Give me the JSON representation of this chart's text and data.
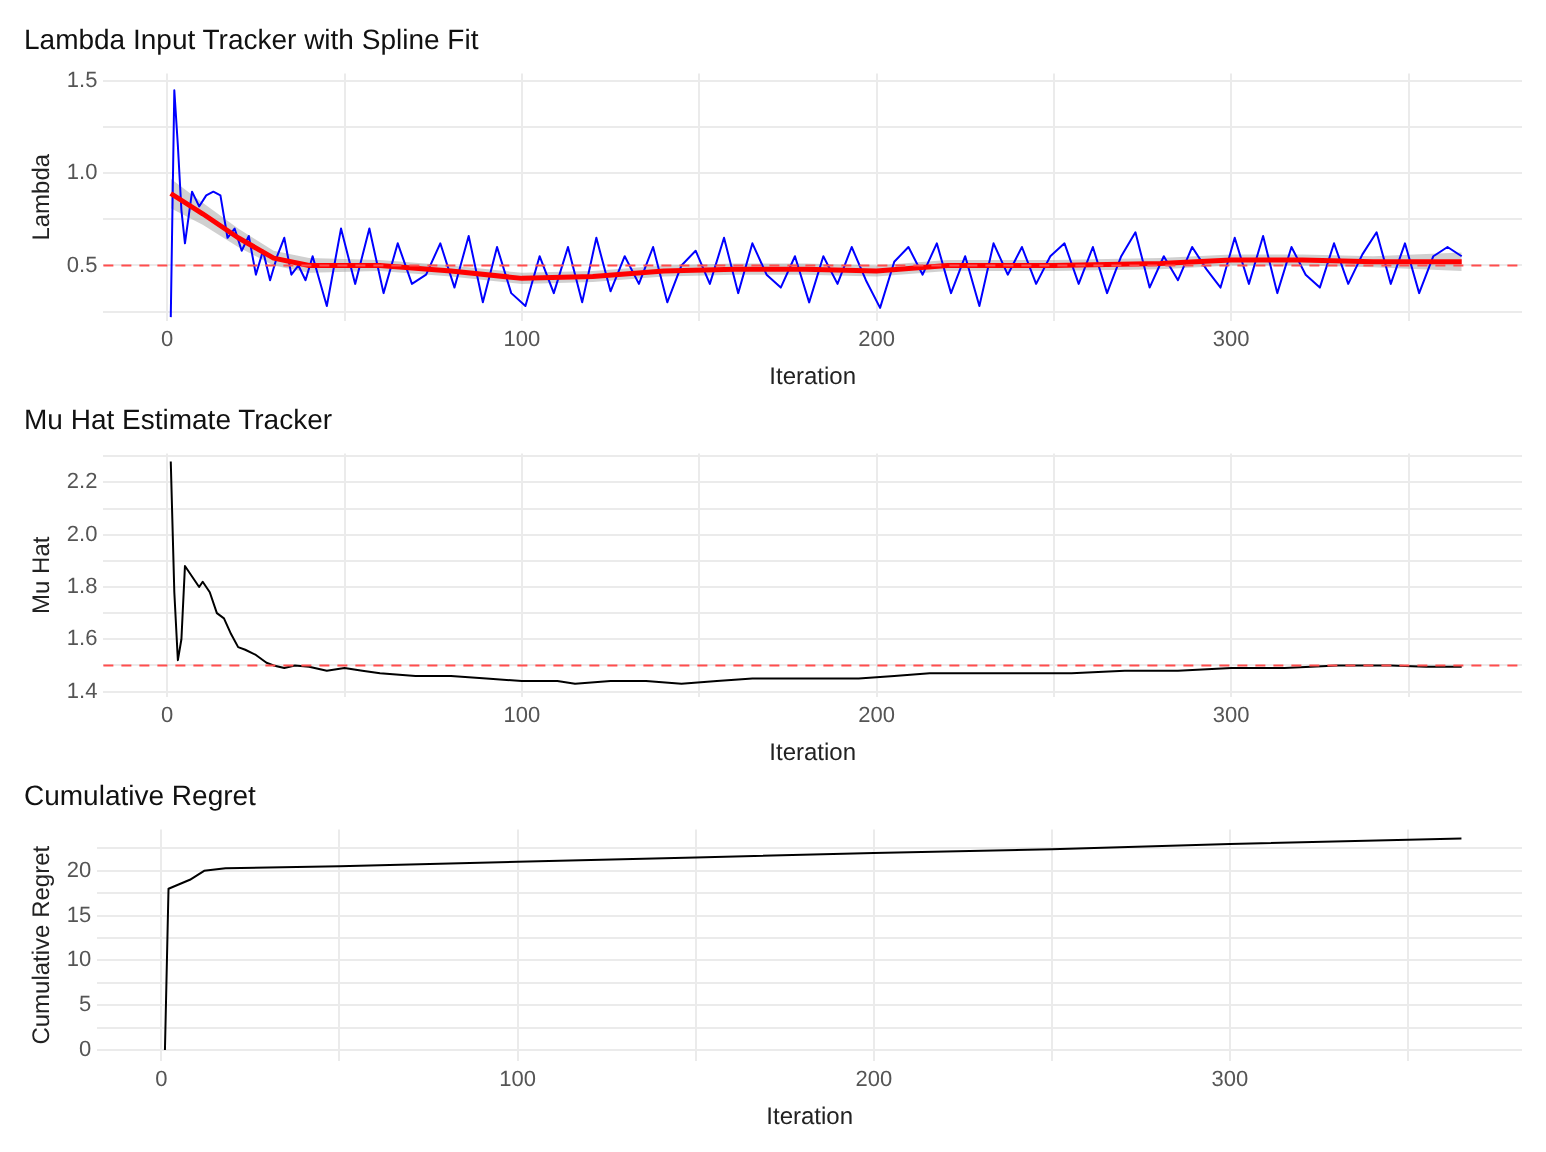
{
  "chart_data": [
    {
      "type": "line",
      "title": "Lambda Input Tracker with Spline Fit",
      "xlabel": "Iteration",
      "ylabel": "Lambda",
      "marker": "none",
      "grid": true,
      "xlim": [
        -18,
        382
      ],
      "xticks": [
        0,
        {
          "value": 50,
          "label": null
        },
        100,
        {
          "value": 150,
          "label": null
        },
        200,
        {
          "value": 250,
          "label": null
        },
        300,
        {
          "value": 350,
          "label": null
        }
      ],
      "ylim": [
        0.2,
        1.54
      ],
      "yticks": [
        {
          "value": 0.25,
          "label": null
        },
        0.5,
        {
          "value": 0.75,
          "label": null
        },
        {
          "value": 1,
          "label": "1.0"
        },
        {
          "value": 1.25,
          "label": null
        },
        1.5
      ],
      "ref_lines": [
        {
          "axis": "y",
          "value": 0.5,
          "color": "#ff4d4d",
          "line_style": "dashed"
        }
      ],
      "series": [
        {
          "color": "#0000ff",
          "x": [
            1,
            2,
            3,
            4,
            5,
            7,
            9,
            11,
            13,
            15,
            17,
            19,
            21,
            23,
            25,
            27,
            29,
            31,
            33,
            35,
            37,
            39,
            41,
            45,
            49,
            53,
            57,
            61,
            65,
            69,
            73,
            77,
            81,
            85,
            89,
            93,
            97,
            101,
            105,
            109,
            113,
            117,
            121,
            125,
            129,
            133,
            137,
            141,
            145,
            149,
            153,
            157,
            161,
            165,
            169,
            173,
            177,
            181,
            185,
            189,
            193,
            197,
            201,
            205,
            209,
            213,
            217,
            221,
            225,
            229,
            233,
            237,
            241,
            245,
            249,
            253,
            257,
            261,
            265,
            269,
            273,
            277,
            281,
            285,
            289,
            293,
            297,
            301,
            305,
            309,
            313,
            317,
            321,
            325,
            329,
            333,
            337,
            341,
            345,
            349,
            353,
            357,
            361,
            365
          ],
          "values": [
            0.22,
            1.45,
            1.15,
            0.8,
            0.62,
            0.9,
            0.82,
            0.88,
            0.9,
            0.88,
            0.65,
            0.7,
            0.58,
            0.66,
            0.45,
            0.58,
            0.42,
            0.55,
            0.65,
            0.45,
            0.5,
            0.42,
            0.55,
            0.28,
            0.7,
            0.4,
            0.7,
            0.35,
            0.62,
            0.4,
            0.45,
            0.62,
            0.38,
            0.66,
            0.3,
            0.6,
            0.35,
            0.28,
            0.55,
            0.35,
            0.6,
            0.3,
            0.65,
            0.36,
            0.55,
            0.4,
            0.6,
            0.3,
            0.5,
            0.58,
            0.4,
            0.65,
            0.35,
            0.62,
            0.45,
            0.38,
            0.55,
            0.3,
            0.55,
            0.4,
            0.6,
            0.42,
            0.27,
            0.52,
            0.6,
            0.45,
            0.62,
            0.35,
            0.55,
            0.28,
            0.62,
            0.45,
            0.6,
            0.4,
            0.55,
            0.62,
            0.4,
            0.6,
            0.35,
            0.55,
            0.68,
            0.38,
            0.55,
            0.42,
            0.6,
            0.48,
            0.38,
            0.65,
            0.4,
            0.66,
            0.35,
            0.6,
            0.45,
            0.38,
            0.62,
            0.4,
            0.56,
            0.68,
            0.4,
            0.62,
            0.35,
            0.55,
            0.6,
            0.55
          ]
        },
        {
          "color": "#ff0000",
          "x": [
            1,
            10,
            20,
            30,
            40,
            60,
            80,
            100,
            120,
            140,
            160,
            180,
            200,
            220,
            250,
            280,
            300,
            320,
            340,
            365
          ],
          "values": [
            0.89,
            0.78,
            0.65,
            0.54,
            0.5,
            0.5,
            0.47,
            0.43,
            0.44,
            0.47,
            0.48,
            0.48,
            0.47,
            0.5,
            0.5,
            0.51,
            0.53,
            0.53,
            0.52,
            0.52
          ],
          "lower": [
            0.81,
            0.72,
            0.6,
            0.5,
            0.46,
            0.47,
            0.44,
            0.4,
            0.41,
            0.44,
            0.45,
            0.45,
            0.44,
            0.47,
            0.47,
            0.48,
            0.5,
            0.5,
            0.49,
            0.47
          ],
          "upper": [
            0.97,
            0.84,
            0.7,
            0.58,
            0.54,
            0.53,
            0.5,
            0.46,
            0.47,
            0.5,
            0.51,
            0.51,
            0.5,
            0.53,
            0.53,
            0.54,
            0.56,
            0.56,
            0.55,
            0.57
          ]
        }
      ]
    },
    {
      "type": "line",
      "title": "Mu Hat Estimate Tracker",
      "xlabel": "Iteration",
      "ylabel": "Mu Hat",
      "marker": "none",
      "grid": true,
      "xlim": [
        -18,
        382
      ],
      "xticks": [
        0,
        {
          "value": 50,
          "label": null
        },
        100,
        {
          "value": 150,
          "label": null
        },
        200,
        {
          "value": 250,
          "label": null
        },
        300,
        {
          "value": 350,
          "label": null
        }
      ],
      "ylim": [
        1.38,
        2.31
      ],
      "yticks": [
        1.4,
        {
          "value": 1.5,
          "label": null
        },
        1.6,
        {
          "value": 1.7,
          "label": null
        },
        1.8,
        {
          "value": 1.9,
          "label": null
        },
        {
          "value": 2,
          "label": "2.0"
        },
        {
          "value": 2.1,
          "label": null
        },
        2.2,
        {
          "value": 2.3,
          "label": null
        }
      ],
      "ref_lines": [
        {
          "axis": "y",
          "value": 1.5,
          "color": "#ff4d4d",
          "line_style": "dashed"
        }
      ],
      "series": [
        {
          "color": "#000000",
          "x": [
            1,
            2,
            3,
            4,
            5,
            6,
            8,
            9,
            10,
            12,
            14,
            16,
            18,
            20,
            22,
            25,
            28,
            30,
            33,
            36,
            40,
            45,
            50,
            55,
            60,
            70,
            80,
            90,
            100,
            110,
            115,
            125,
            135,
            145,
            155,
            165,
            175,
            185,
            195,
            205,
            215,
            225,
            240,
            255,
            270,
            285,
            300,
            315,
            330,
            345,
            355,
            365
          ],
          "values": [
            2.28,
            1.78,
            1.52,
            1.6,
            1.88,
            1.86,
            1.82,
            1.8,
            1.82,
            1.78,
            1.7,
            1.68,
            1.62,
            1.57,
            1.56,
            1.54,
            1.51,
            1.5,
            1.49,
            1.5,
            1.495,
            1.48,
            1.49,
            1.48,
            1.47,
            1.46,
            1.46,
            1.45,
            1.44,
            1.44,
            1.43,
            1.44,
            1.44,
            1.43,
            1.44,
            1.45,
            1.45,
            1.45,
            1.45,
            1.46,
            1.47,
            1.47,
            1.47,
            1.47,
            1.48,
            1.48,
            1.49,
            1.49,
            1.5,
            1.5,
            1.495,
            1.495
          ]
        }
      ]
    },
    {
      "type": "line",
      "title": "Cumulative Regret",
      "xlabel": "Iteration",
      "ylabel": "Cumulative Regret",
      "marker": "none",
      "grid": true,
      "xlim": [
        -18,
        382
      ],
      "xticks": [
        0,
        {
          "value": 50,
          "label": null
        },
        100,
        {
          "value": 150,
          "label": null
        },
        200,
        {
          "value": 250,
          "label": null
        },
        300,
        {
          "value": 350,
          "label": null
        }
      ],
      "ylim": [
        -1.2,
        24.6
      ],
      "yticks": [
        0,
        {
          "value": 2.5,
          "label": null
        },
        5,
        {
          "value": 7.5,
          "label": null
        },
        10,
        {
          "value": 12.5,
          "label": null
        },
        15,
        {
          "value": 17.5,
          "label": null
        },
        20,
        {
          "value": 22.5,
          "label": null
        }
      ],
      "series": [
        {
          "color": "#000000",
          "x": [
            1,
            2,
            5,
            8,
            12,
            18,
            50,
            100,
            150,
            200,
            250,
            300,
            365
          ],
          "values": [
            0,
            18,
            18.5,
            19,
            20,
            20.3,
            20.5,
            21,
            21.5,
            22,
            22.4,
            23,
            23.6
          ]
        }
      ]
    }
  ]
}
